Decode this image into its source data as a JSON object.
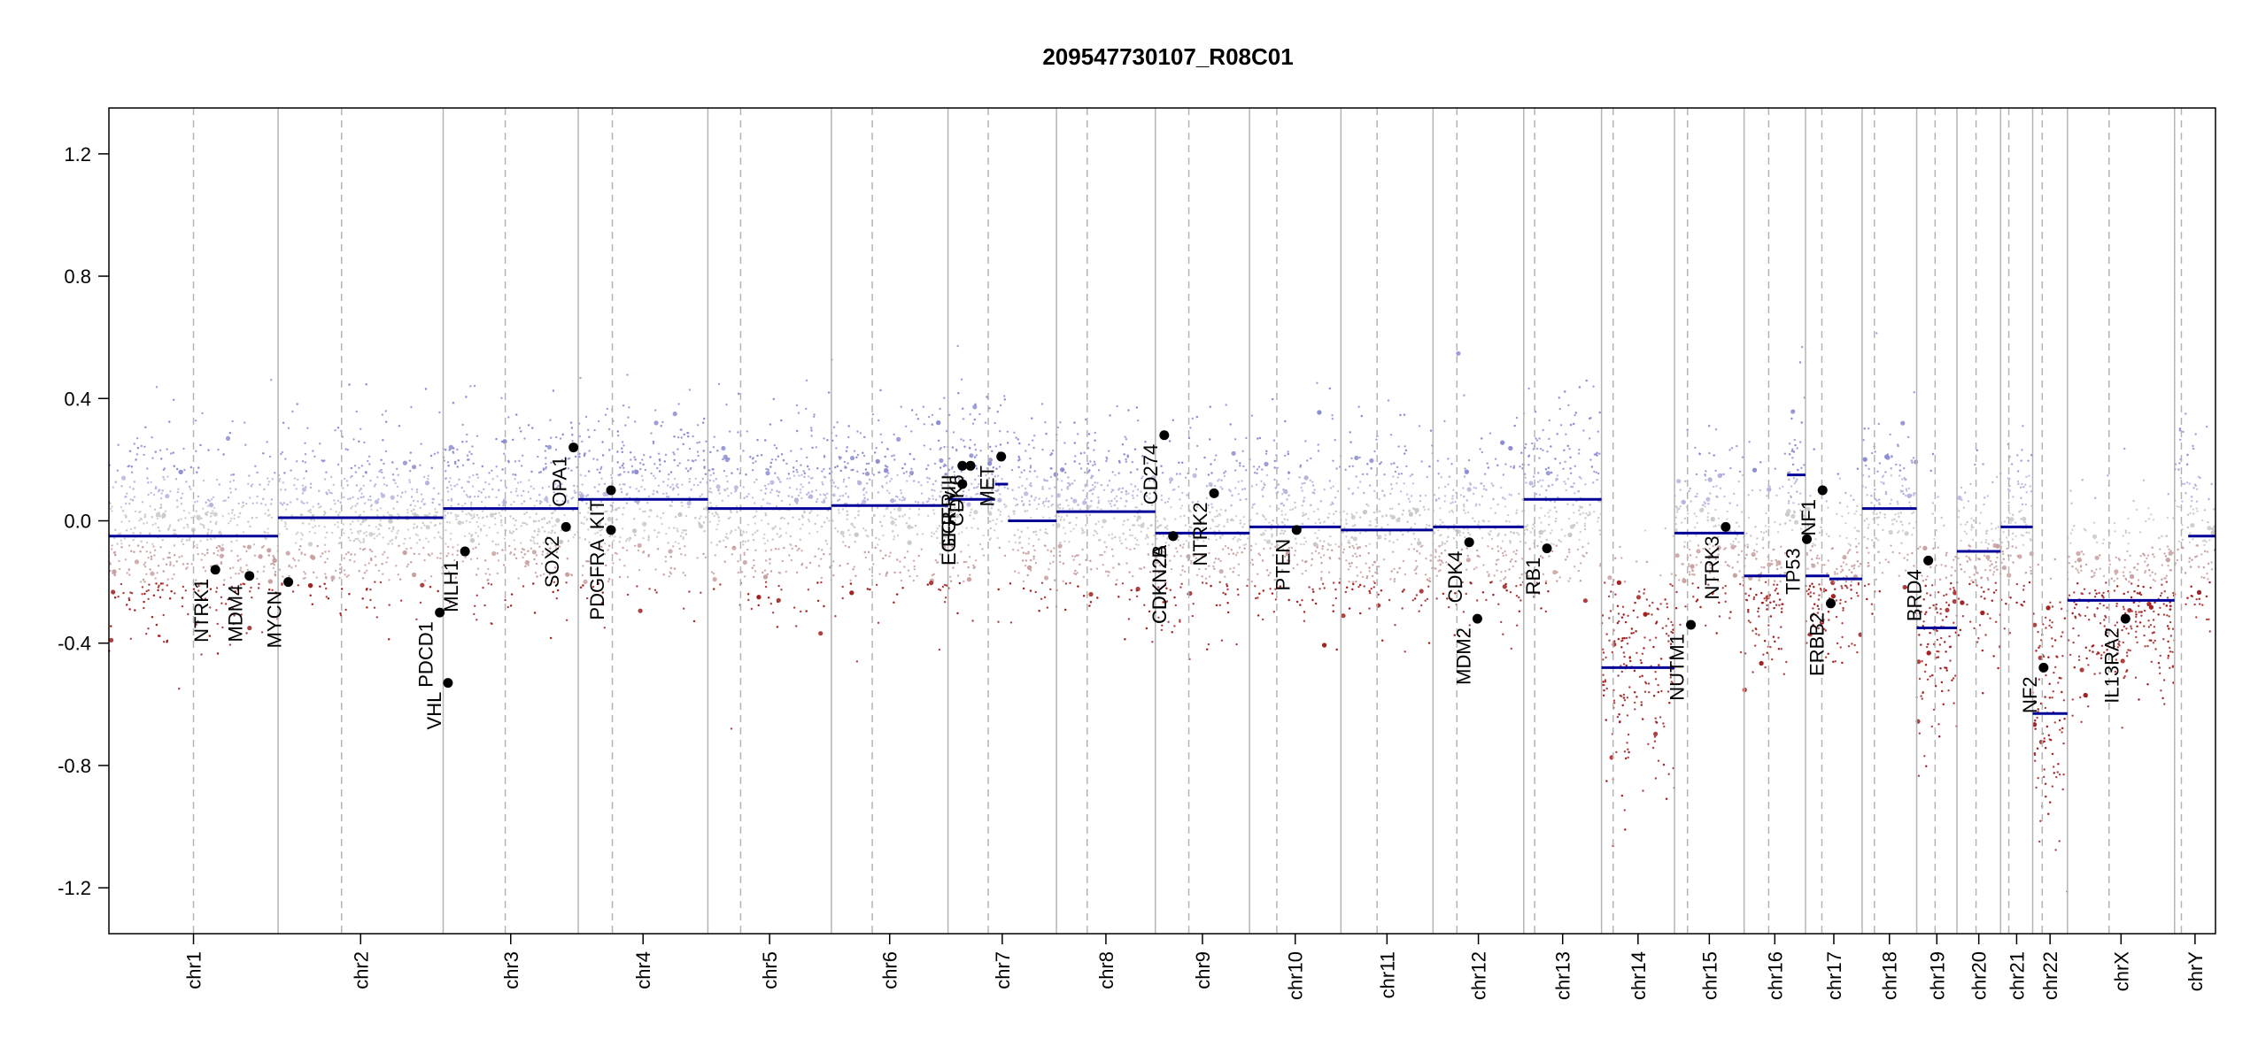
{
  "chart_data": {
    "type": "scatter",
    "title": "209547730107_R08C01",
    "ylim": [
      -1.35,
      1.35
    ],
    "yticks": [
      -1.2,
      -0.8,
      -0.4,
      0.0,
      0.4,
      0.8,
      1.2
    ],
    "ytick_labels": [
      "-1.2",
      "-0.8",
      "-0.4",
      "0.0",
      "0.4",
      "0.8",
      "1.2"
    ],
    "xlim": [
      0,
      3088
    ],
    "colors": {
      "gain": "#1f1fa0",
      "gain_light": "#8c8cd2",
      "neutral": "#c8c8c8",
      "loss": "#a01e1e",
      "segment": "#000099",
      "boundary": "#b4b4b4",
      "gene": "#000000"
    },
    "chromosomes": [
      {
        "name": "chr1",
        "start": 0,
        "end": 248,
        "centromere": 124
      },
      {
        "name": "chr2",
        "start": 248,
        "end": 490,
        "centromere": 341
      },
      {
        "name": "chr3",
        "start": 490,
        "end": 688,
        "centromere": 581
      },
      {
        "name": "chr4",
        "start": 688,
        "end": 878,
        "centromere": 738
      },
      {
        "name": "chr5",
        "start": 878,
        "end": 1059,
        "centromere": 926
      },
      {
        "name": "chr6",
        "start": 1059,
        "end": 1230,
        "centromere": 1119
      },
      {
        "name": "chr7",
        "start": 1230,
        "end": 1389,
        "centromere": 1289
      },
      {
        "name": "chr8",
        "start": 1389,
        "end": 1534,
        "centromere": 1434
      },
      {
        "name": "chr9",
        "start": 1534,
        "end": 1672,
        "centromere": 1583
      },
      {
        "name": "chr10",
        "start": 1672,
        "end": 1806,
        "centromere": 1712
      },
      {
        "name": "chr11",
        "start": 1806,
        "end": 1941,
        "centromere": 1859
      },
      {
        "name": "chr12",
        "start": 1941,
        "end": 2074,
        "centromere": 1976
      },
      {
        "name": "chr13",
        "start": 2074,
        "end": 2188,
        "centromere": 2090
      },
      {
        "name": "chr14",
        "start": 2188,
        "end": 2295,
        "centromere": 2205
      },
      {
        "name": "chr15",
        "start": 2295,
        "end": 2397,
        "centromere": 2314
      },
      {
        "name": "chr16",
        "start": 2397,
        "end": 2487,
        "centromere": 2433
      },
      {
        "name": "chr17",
        "start": 2487,
        "end": 2570,
        "centromere": 2511
      },
      {
        "name": "chr18",
        "start": 2570,
        "end": 2650,
        "centromere": 2588
      },
      {
        "name": "chr19",
        "start": 2650,
        "end": 2709,
        "centromere": 2677
      },
      {
        "name": "chr20",
        "start": 2709,
        "end": 2773,
        "centromere": 2737
      },
      {
        "name": "chr21",
        "start": 2773,
        "end": 2820,
        "centromere": 2785
      },
      {
        "name": "chr22",
        "start": 2820,
        "end": 2871,
        "centromere": 2834
      },
      {
        "name": "chrX",
        "start": 2871,
        "end": 3028,
        "centromere": 2932
      },
      {
        "name": "chrY",
        "start": 3028,
        "end": 3088,
        "centromere": 3038
      }
    ],
    "segments": [
      {
        "x0": 0,
        "x1": 248,
        "y": -0.05
      },
      {
        "x0": 248,
        "x1": 490,
        "y": 0.01
      },
      {
        "x0": 490,
        "x1": 688,
        "y": 0.04
      },
      {
        "x0": 688,
        "x1": 878,
        "y": 0.07
      },
      {
        "x0": 878,
        "x1": 1059,
        "y": 0.04
      },
      {
        "x0": 1059,
        "x1": 1230,
        "y": 0.05
      },
      {
        "x0": 1230,
        "x1": 1299,
        "y": 0.07
      },
      {
        "x0": 1299,
        "x1": 1318,
        "y": 0.12
      },
      {
        "x0": 1318,
        "x1": 1389,
        "y": 0.0
      },
      {
        "x0": 1389,
        "x1": 1534,
        "y": 0.03
      },
      {
        "x0": 1534,
        "x1": 1672,
        "y": -0.04
      },
      {
        "x0": 1672,
        "x1": 1806,
        "y": -0.02
      },
      {
        "x0": 1806,
        "x1": 1941,
        "y": -0.03
      },
      {
        "x0": 1941,
        "x1": 2074,
        "y": -0.02
      },
      {
        "x0": 2074,
        "x1": 2188,
        "y": 0.07
      },
      {
        "x0": 2188,
        "x1": 2295,
        "y": -0.48
      },
      {
        "x0": 2295,
        "x1": 2397,
        "y": -0.04
      },
      {
        "x0": 2397,
        "x1": 2460,
        "y": -0.18
      },
      {
        "x0": 2460,
        "x1": 2487,
        "y": 0.15
      },
      {
        "x0": 2487,
        "x1": 2522,
        "y": -0.18
      },
      {
        "x0": 2522,
        "x1": 2570,
        "y": -0.19
      },
      {
        "x0": 2570,
        "x1": 2650,
        "y": 0.04
      },
      {
        "x0": 2650,
        "x1": 2709,
        "y": -0.35
      },
      {
        "x0": 2709,
        "x1": 2773,
        "y": -0.1
      },
      {
        "x0": 2773,
        "x1": 2820,
        "y": -0.02
      },
      {
        "x0": 2820,
        "x1": 2871,
        "y": -0.63
      },
      {
        "x0": 2871,
        "x1": 3028,
        "y": -0.26
      },
      {
        "x0": 3048,
        "x1": 3088,
        "y": -0.05
      }
    ],
    "genes": [
      {
        "name": "NTRK1",
        "x": 156,
        "y": -0.16
      },
      {
        "name": "MDM4",
        "x": 206,
        "y": -0.18
      },
      {
        "name": "MYCN",
        "x": 263,
        "y": -0.2
      },
      {
        "name": "PDCD1",
        "x": 485,
        "y": -0.3
      },
      {
        "name": "VHL",
        "x": 497,
        "y": -0.53
      },
      {
        "name": "MLH1",
        "x": 522,
        "y": -0.1
      },
      {
        "name": "SOX2",
        "x": 670,
        "y": -0.02
      },
      {
        "name": "OPA1",
        "x": 681,
        "y": 0.24
      },
      {
        "name": "KIT",
        "x": 736,
        "y": 0.1
      },
      {
        "name": "PDGFRA",
        "x": 736,
        "y": -0.03
      },
      {
        "name": "EGFR",
        "x": 1251,
        "y": 0.12
      },
      {
        "name": "EGFR_vIII",
        "x": 1251,
        "y": 0.18
      },
      {
        "name": "CDK6",
        "x": 1263,
        "y": 0.18
      },
      {
        "name": "MET",
        "x": 1308,
        "y": 0.21
      },
      {
        "name": "CD274",
        "x": 1547,
        "y": 0.28
      },
      {
        "name": "CDKN2A",
        "x": 1560,
        "y": -0.05
      },
      {
        "name": "CDKN2B",
        "x": 1560,
        "y": -0.05
      },
      {
        "name": "NTRK2",
        "x": 1620,
        "y": 0.09
      },
      {
        "name": "PTEN",
        "x": 1741,
        "y": -0.03
      },
      {
        "name": "CDK4",
        "x": 1994,
        "y": -0.07
      },
      {
        "name": "MDM2",
        "x": 2006,
        "y": -0.32
      },
      {
        "name": "RB1",
        "x": 2108,
        "y": -0.09
      },
      {
        "name": "NUTM1",
        "x": 2319,
        "y": -0.34
      },
      {
        "name": "NTRK3",
        "x": 2370,
        "y": -0.02
      },
      {
        "name": "TP53",
        "x": 2489,
        "y": -0.06
      },
      {
        "name": "NF1",
        "x": 2512,
        "y": 0.1
      },
      {
        "name": "ERBB2",
        "x": 2524,
        "y": -0.27
      },
      {
        "name": "BRD4",
        "x": 2667,
        "y": -0.13
      },
      {
        "name": "NF2",
        "x": 2836,
        "y": -0.48
      },
      {
        "name": "IL13RA2",
        "x": 2956,
        "y": -0.32
      }
    ]
  }
}
